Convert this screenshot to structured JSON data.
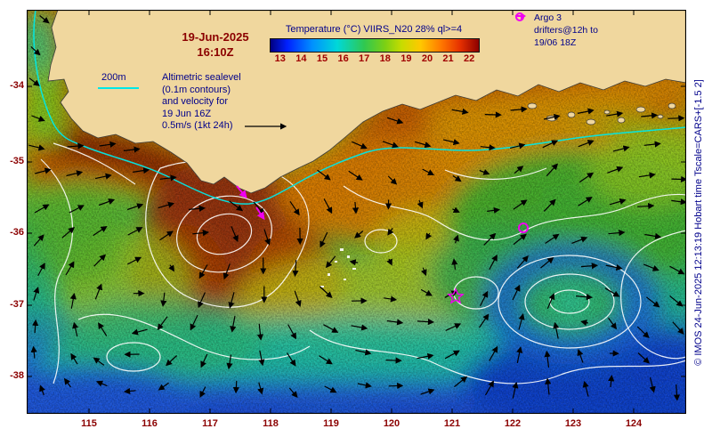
{
  "title": {
    "date": "19-Jun-2025",
    "time": "16:10Z"
  },
  "colorbar": {
    "title": "Temperature (°C) VIIRS_N20 28% ql>=4",
    "ticks": [
      "13",
      "14",
      "15",
      "16",
      "17",
      "18",
      "19",
      "20",
      "21",
      "22"
    ]
  },
  "legend": {
    "lines": [
      "Altimetric sealevel",
      "(0.1m contours)",
      "and velocity for",
      "19 Jun 16Z",
      "0.5m/s (1kt 24h)"
    ]
  },
  "depth_contour_label": "200m",
  "argo": {
    "line1": "Argo 3",
    "line2": "drifters@12h to",
    "line3": "19/06 18Z"
  },
  "watermark": "© IMOS 24-Jun-2025 12:13:19 Hobart time  Tscale=CARS+[-1.5 2]",
  "axes": {
    "x_ticks": [
      "115",
      "116",
      "117",
      "118",
      "119",
      "120",
      "121",
      "122",
      "123",
      "124"
    ],
    "y_ticks": [
      "-34",
      "-35",
      "-36",
      "-37",
      "-38"
    ]
  },
  "colors": {
    "label_dark_red": "#8b0000",
    "label_navy": "#00008b",
    "marker_magenta": "#f000f0",
    "isobath_cyan": "#00e8e8",
    "land_tan": "#f0d79e"
  },
  "chart_data": {
    "type": "heatmap",
    "title": "Temperature (°C) VIIRS_N20 28% ql>=4",
    "value_label": "Temperature (°C)",
    "value_range": [
      13,
      22
    ],
    "colorbar_ticks": [
      13,
      14,
      15,
      16,
      17,
      18,
      19,
      20,
      21,
      22
    ],
    "x_ticks": [
      115,
      116,
      117,
      118,
      119,
      120,
      121,
      122,
      123,
      124
    ],
    "y_ticks": [
      -34,
      -35,
      -36,
      -37,
      -38
    ],
    "overlays": [
      "altimetric sealevel contours (0.1m)",
      "velocity vectors 0.5m/s (1kt 24h)",
      "200m isobath",
      "Argo 3 drifters@12h to 19/06 18Z"
    ]
  }
}
